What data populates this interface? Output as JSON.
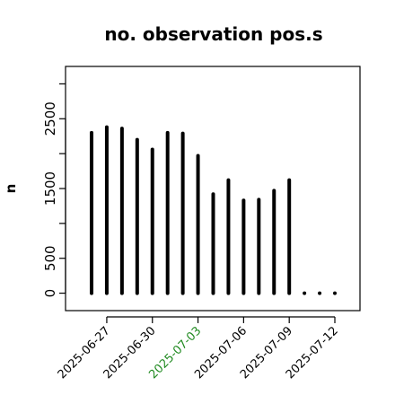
{
  "chart_data": {
    "type": "bar",
    "title": "no. observation pos.s",
    "ylabel": "n",
    "xlabel": "",
    "ylim": [
      -250,
      3250
    ],
    "yticks": [
      0,
      500,
      1500,
      2500
    ],
    "x": [
      "2025-06-26",
      "2025-06-27",
      "2025-06-28",
      "2025-06-29",
      "2025-06-30",
      "2025-07-01",
      "2025-07-02",
      "2025-07-03",
      "2025-07-04",
      "2025-07-05",
      "2025-07-06",
      "2025-07-07",
      "2025-07-08",
      "2025-07-09",
      "2025-07-10",
      "2025-07-11",
      "2025-07-12"
    ],
    "values": [
      2300,
      2380,
      2360,
      2200,
      2060,
      2300,
      2290,
      1970,
      1420,
      1620,
      1330,
      1340,
      1470,
      1620,
      0,
      0,
      0
    ],
    "xtick_labels": [
      {
        "date": "2025-06-27",
        "text": "2025-06-27",
        "color": "#000000"
      },
      {
        "date": "2025-06-30",
        "text": "2025-06-30",
        "color": "#000000"
      },
      {
        "date": "2025-07-03",
        "text": "2025-07-03",
        "color": "#228B22"
      },
      {
        "date": "2025-07-06",
        "text": "2025-07-06",
        "color": "#000000"
      },
      {
        "date": "2025-07-09",
        "text": "2025-07-09",
        "color": "#000000"
      },
      {
        "date": "2025-07-12",
        "text": "2025-07-12",
        "color": "#000000"
      }
    ],
    "bar_color": "#000000",
    "grid": false,
    "legend": "none"
  }
}
